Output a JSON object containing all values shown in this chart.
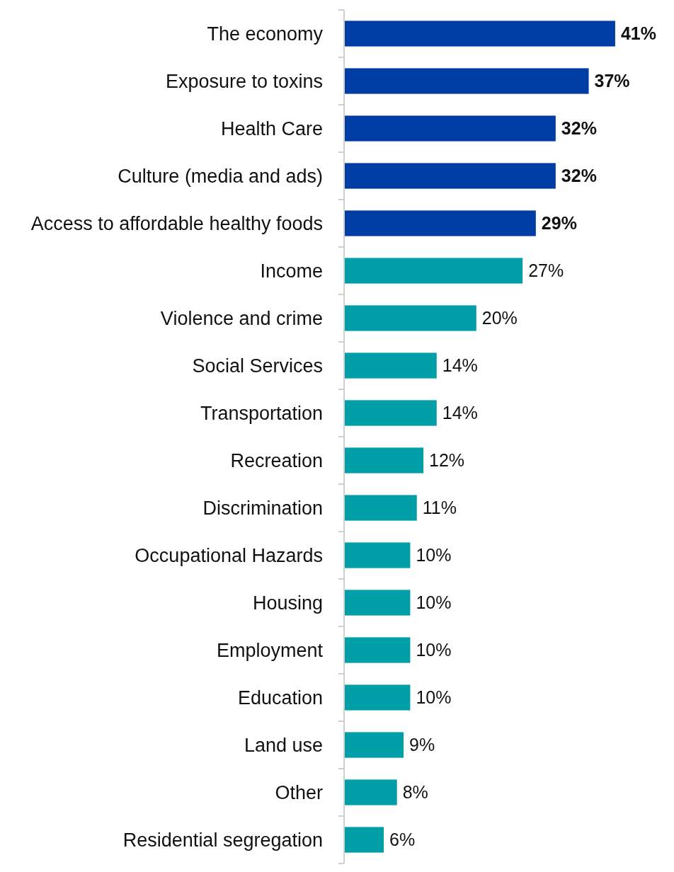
{
  "chart_data": {
    "type": "bar",
    "orientation": "horizontal",
    "relative": false,
    "data_labels": true,
    "categories": [
      "The economy",
      "Exposure to toxins",
      "Health Care",
      "Culture (media and ads)",
      "Access to affordable healthy foods",
      "Income",
      "Violence and crime",
      "Social Services",
      "Transportation",
      "Recreation",
      "Discrimination",
      "Occupational Hazards",
      "Housing",
      "Employment",
      "Education",
      "Land use",
      "Other",
      "Residential segregation"
    ],
    "values": [
      41,
      37,
      32,
      32,
      29,
      27,
      20,
      14,
      14,
      12,
      11,
      10,
      10,
      10,
      10,
      9,
      8,
      6
    ],
    "value_labels": [
      "41%",
      "37%",
      "32%",
      "32%",
      "29%",
      "27%",
      "20%",
      "14%",
      "14%",
      "12%",
      "11%",
      "10%",
      "10%",
      "10%",
      "10%",
      "9%",
      "8%",
      "6%"
    ],
    "colors": [
      "#003da5",
      "#003da5",
      "#003da5",
      "#003da5",
      "#003da5",
      "#009fa8",
      "#009fa8",
      "#009fa8",
      "#009fa8",
      "#009fa8",
      "#009fa8",
      "#009fa8",
      "#009fa8",
      "#009fa8",
      "#009fa8",
      "#009fa8",
      "#009fa8",
      "#009fa8"
    ]
  }
}
